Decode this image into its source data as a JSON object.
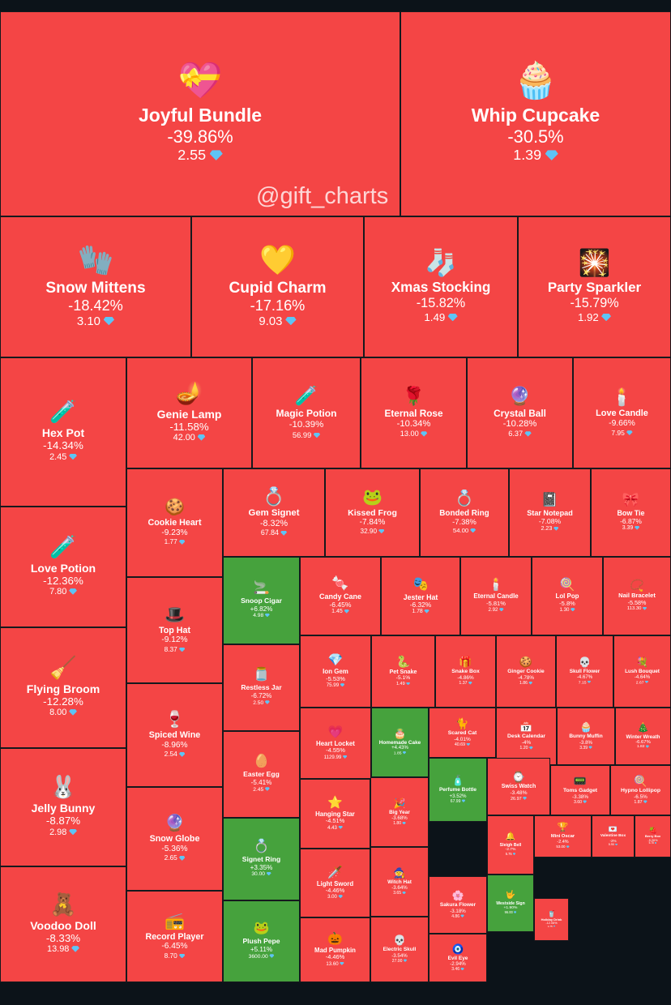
{
  "watermark": "@gift_charts",
  "colors": {
    "down": "#f44545",
    "up": "#46a23d",
    "background": "#0c1319",
    "gem": "#5ec4f5"
  },
  "chart_data": {
    "type": "treemap",
    "items": [
      {
        "name": "Joyful Bundle",
        "change": "-39.86%",
        "price": "2.55",
        "icon": "💝",
        "up": false
      },
      {
        "name": "Whip Cupcake",
        "change": "-30.5%",
        "price": "1.39",
        "icon": "🧁",
        "up": false
      },
      {
        "name": "Snow Mittens",
        "change": "-18.42%",
        "price": "3.10",
        "icon": "🧤",
        "up": false
      },
      {
        "name": "Cupid Charm",
        "change": "-17.16%",
        "price": "9.03",
        "icon": "💛",
        "up": false
      },
      {
        "name": "Xmas Stocking",
        "change": "-15.82%",
        "price": "1.49",
        "icon": "🧦",
        "up": false
      },
      {
        "name": "Party Sparkler",
        "change": "-15.79%",
        "price": "1.92",
        "icon": "🎇",
        "up": false
      },
      {
        "name": "Hex Pot",
        "change": "-14.34%",
        "price": "2.45",
        "icon": "🧪",
        "up": false
      },
      {
        "name": "Genie Lamp",
        "change": "-11.58%",
        "price": "42.00",
        "icon": "🪔",
        "up": false
      },
      {
        "name": "Magic Potion",
        "change": "-10.39%",
        "price": "56.99",
        "icon": "🧪",
        "up": false
      },
      {
        "name": "Eternal Rose",
        "change": "-10.34%",
        "price": "13.00",
        "icon": "🌹",
        "up": false
      },
      {
        "name": "Crystal Ball",
        "change": "-10.28%",
        "price": "6.37",
        "icon": "🔮",
        "up": false
      },
      {
        "name": "Love Candle",
        "change": "-9.66%",
        "price": "7.95",
        "icon": "🕯️",
        "up": false
      },
      {
        "name": "Love Potion",
        "change": "-12.36%",
        "price": "7.80",
        "icon": "🧪",
        "up": false
      },
      {
        "name": "Cookie Heart",
        "change": "-9.23%",
        "price": "1.77",
        "icon": "🍪",
        "up": false
      },
      {
        "name": "Gem Signet",
        "change": "-8.32%",
        "price": "67.84",
        "icon": "💍",
        "up": false
      },
      {
        "name": "Kissed Frog",
        "change": "-7.84%",
        "price": "32.90",
        "icon": "🐸",
        "up": false
      },
      {
        "name": "Bonded Ring",
        "change": "-7.38%",
        "price": "54.00",
        "icon": "💍",
        "up": false
      },
      {
        "name": "Star Notepad",
        "change": "-7.08%",
        "price": "2.23",
        "icon": "📓",
        "up": false
      },
      {
        "name": "Bow Tie",
        "change": "-6.87%",
        "price": "3.39",
        "icon": "🎀",
        "up": false
      },
      {
        "name": "Snoop Cigar",
        "change": "+6.82%",
        "price": "4.98",
        "icon": "🚬",
        "up": true
      },
      {
        "name": "Candy Cane",
        "change": "-6.45%",
        "price": "1.45",
        "icon": "🍬",
        "up": false
      },
      {
        "name": "Jester Hat",
        "change": "-6.32%",
        "price": "1.78",
        "icon": "🎭",
        "up": false
      },
      {
        "name": "Eternal Candle",
        "change": "-5.81%",
        "price": "2.92",
        "icon": "🕯️",
        "up": false
      },
      {
        "name": "Lol Pop",
        "change": "-5.8%",
        "price": "1.30",
        "icon": "🍭",
        "up": false
      },
      {
        "name": "Nail Bracelet",
        "change": "-5.58%",
        "price": "113.30",
        "icon": "📿",
        "up": false
      },
      {
        "name": "Top Hat",
        "change": "-9.12%",
        "price": "8.37",
        "icon": "🎩",
        "up": false
      },
      {
        "name": "Restless Jar",
        "change": "-6.72%",
        "price": "2.50",
        "icon": "🫙",
        "up": false
      },
      {
        "name": "Ion Gem",
        "change": "-5.53%",
        "price": "75.99",
        "icon": "💎",
        "up": false
      },
      {
        "name": "Pet Snake",
        "change": "-5.1%",
        "price": "1.49",
        "icon": "🐍",
        "up": false
      },
      {
        "name": "Snake Box",
        "change": "-4.86%",
        "price": "1.37",
        "icon": "🎁",
        "up": false
      },
      {
        "name": "Ginger Cookie",
        "change": "-4.78%",
        "price": "1.86",
        "icon": "🍪",
        "up": false
      },
      {
        "name": "Skull Flower",
        "change": "-4.67%",
        "price": "7.15",
        "icon": "💀",
        "up": false
      },
      {
        "name": "Lush Bouquet",
        "change": "-4.64%",
        "price": "2.67",
        "icon": "💐",
        "up": false
      },
      {
        "name": "Flying Broom",
        "change": "-12.28%",
        "price": "8.00",
        "icon": "🧹",
        "up": false
      },
      {
        "name": "Spiced Wine",
        "change": "-8.96%",
        "price": "2.54",
        "icon": "🍷",
        "up": false
      },
      {
        "name": "Easter Egg",
        "change": "-5.41%",
        "price": "2.45",
        "icon": "🥚",
        "up": false
      },
      {
        "name": "Heart Locket",
        "change": "-4.55%",
        "price": "1129.99",
        "icon": "💗",
        "up": false
      },
      {
        "name": "Homemade Cake",
        "change": "+4.43%",
        "price": "1.85",
        "icon": "🎂",
        "up": true
      },
      {
        "name": "Scared Cat",
        "change": "-4.01%",
        "price": "40.69",
        "icon": "🐈",
        "up": false
      },
      {
        "name": "Desk Calendar",
        "change": "-4%",
        "price": "1.20",
        "icon": "📅",
        "up": false
      },
      {
        "name": "Bunny Muffin",
        "change": "-3.8%",
        "price": "3.39",
        "icon": "🧁",
        "up": false
      },
      {
        "name": "Winter Wreath",
        "change": "-6.67%",
        "price": "1.82",
        "icon": "🎄",
        "up": false
      },
      {
        "name": "Jingle Bells",
        "change": "-12.18%",
        "price": "1.73",
        "icon": "🔔",
        "up": false
      },
      {
        "name": "Jelly Bunny",
        "change": "-8.87%",
        "price": "2.98",
        "icon": "🐰",
        "up": false
      },
      {
        "name": "Snow Globe",
        "change": "-5.36%",
        "price": "2.65",
        "icon": "🔮",
        "up": false
      },
      {
        "name": "Hanging Star",
        "change": "-4.51%",
        "price": "4.43",
        "icon": "⭐",
        "up": false
      },
      {
        "name": "Big Year",
        "change": "-3.68%",
        "price": "1.80",
        "icon": "🎉",
        "up": false
      },
      {
        "name": "Perfume Bottle",
        "change": "+3.52%",
        "price": "67.99",
        "icon": "🧴",
        "up": true
      },
      {
        "name": "Swiss Watch",
        "change": "-3.48%",
        "price": "26.97",
        "icon": "⌚",
        "up": false
      },
      {
        "name": "Toms Gadget",
        "change": "-3.38%",
        "price": "3.60",
        "icon": "📟",
        "up": false
      },
      {
        "name": "Hypno Lollipop",
        "change": "-6.5%",
        "price": "1.87",
        "icon": "🍭",
        "up": false
      },
      {
        "name": "Heroic Helmet",
        "change": "+3.68%",
        "price": "186.99",
        "icon": "⛑️",
        "up": true
      },
      {
        "name": "Signet Ring",
        "change": "+3.35%",
        "price": "30.00",
        "icon": "💍",
        "up": true
      },
      {
        "name": "Sleigh Bell",
        "change": "-2.7%",
        "price": "5.75",
        "icon": "🔔",
        "up": false
      },
      {
        "name": "Mini Oscar",
        "change": "-2.4%",
        "price": "53.00",
        "icon": "🏆",
        "up": false
      },
      {
        "name": "Valentine Box",
        "change": "-2%",
        "price": "5.90",
        "icon": "💌",
        "up": false
      },
      {
        "name": "Berry Box",
        "change": "-5.26%",
        "price": "5.78",
        "icon": "🍓",
        "up": false
      },
      {
        "name": "Light Sword",
        "change": "-4.46%",
        "price": "3.00",
        "icon": "🗡️",
        "up": false
      },
      {
        "name": "Witch Hat",
        "change": "-3.64%",
        "price": "3.65",
        "icon": "🧙",
        "up": false
      },
      {
        "name": "Sakura Flower",
        "change": "-3.18%",
        "price": "4.86",
        "icon": "🌸",
        "up": false
      },
      {
        "name": "Westside Sign",
        "change": "+1.90%",
        "price": "96.00",
        "icon": "🤟",
        "up": true
      },
      {
        "name": "Holiday Drink",
        "change": "-12.06%",
        "price": "1.75",
        "icon": "🥤",
        "up": false
      },
      {
        "name": "Voodoo Doll",
        "change": "-8.33%",
        "price": "13.98",
        "icon": "🧸",
        "up": false
      },
      {
        "name": "Record Player",
        "change": "-6.45%",
        "price": "8.70",
        "icon": "📻",
        "up": false
      },
      {
        "name": "Plush Pepe",
        "change": "+5.11%",
        "price": "3600.00",
        "icon": "🐸",
        "up": true
      },
      {
        "name": "Mad Pumpkin",
        "change": "-4.46%",
        "price": "13.60",
        "icon": "🎃",
        "up": false
      },
      {
        "name": "Electric Skull",
        "change": "-3.54%",
        "price": "27.00",
        "icon": "💀",
        "up": false
      },
      {
        "name": "Evil Eye",
        "change": "-2.94%",
        "price": "3.46",
        "icon": "🧿",
        "up": false
      }
    ]
  }
}
